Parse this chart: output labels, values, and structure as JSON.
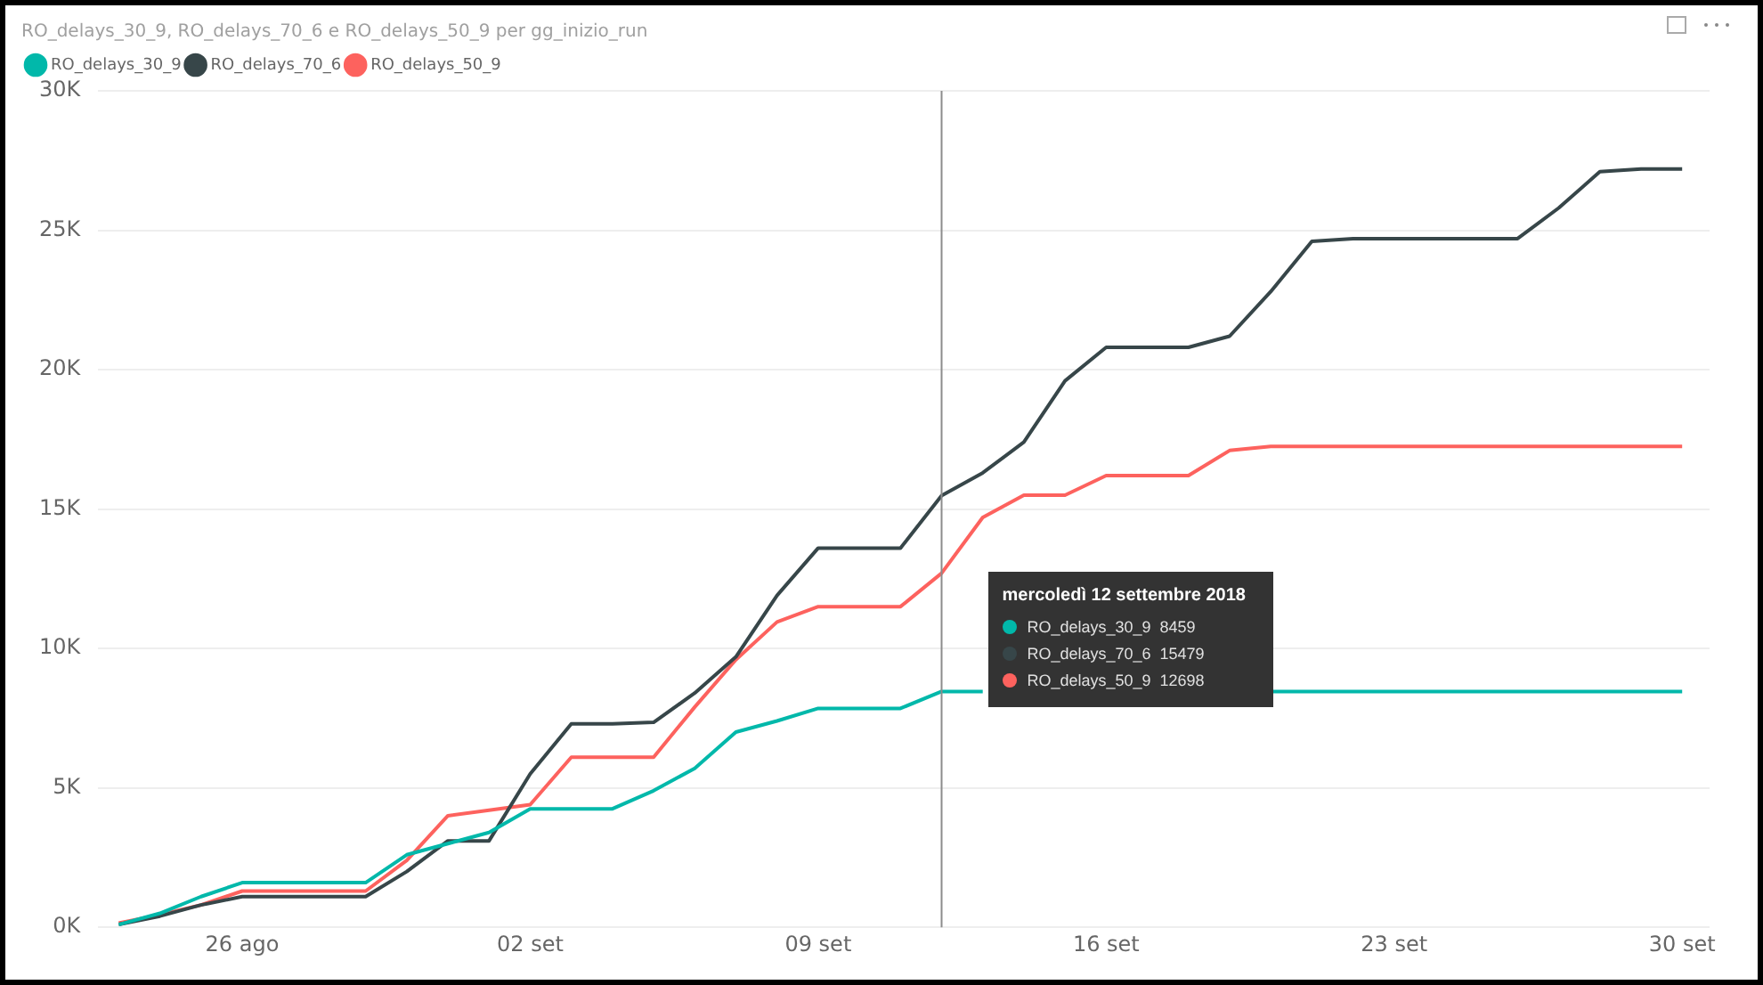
{
  "chart_data": {
    "type": "line",
    "title": "RO_delays_30_9, RO_delays_70_6 e RO_delays_50_9 per gg_inizio_run",
    "x": [
      "2018-08-23",
      "2018-08-24",
      "2018-08-25",
      "2018-08-26",
      "2018-08-27",
      "2018-08-28",
      "2018-08-29",
      "2018-08-30",
      "2018-08-31",
      "2018-09-01",
      "2018-09-02",
      "2018-09-03",
      "2018-09-04",
      "2018-09-05",
      "2018-09-06",
      "2018-09-07",
      "2018-09-08",
      "2018-09-09",
      "2018-09-10",
      "2018-09-11",
      "2018-09-12",
      "2018-09-13",
      "2018-09-14",
      "2018-09-15",
      "2018-09-16",
      "2018-09-17",
      "2018-09-18",
      "2018-09-19",
      "2018-09-20",
      "2018-09-21",
      "2018-09-22",
      "2018-09-23",
      "2018-09-24",
      "2018-09-25",
      "2018-09-26",
      "2018-09-27",
      "2018-09-28",
      "2018-09-29",
      "2018-09-30"
    ],
    "series": [
      {
        "name": "RO_delays_30_9",
        "color": "#01b8aa",
        "values": [
          100,
          500,
          1100,
          1600,
          1600,
          1600,
          1600,
          2600,
          3000,
          3400,
          4250,
          4250,
          4250,
          4900,
          5700,
          7000,
          7400,
          7850,
          7850,
          7850,
          8459,
          8459,
          null,
          null,
          null,
          null,
          null,
          null,
          8459,
          8459,
          8459,
          8459,
          8459,
          8459,
          8459,
          8459,
          8459,
          8459,
          8459
        ]
      },
      {
        "name": "RO_delays_70_6",
        "color": "#374649",
        "values": [
          100,
          400,
          800,
          1100,
          1100,
          1100,
          1100,
          2000,
          3100,
          3100,
          5500,
          7300,
          7300,
          7350,
          8400,
          9700,
          11900,
          13600,
          13600,
          13600,
          15479,
          16300,
          17400,
          19600,
          20800,
          20800,
          20800,
          21200,
          22800,
          24600,
          24700,
          24700,
          24700,
          24700,
          24700,
          25800,
          27100,
          27200,
          27200
        ]
      },
      {
        "name": "RO_delays_50_9",
        "color": "#fd625e",
        "values": [
          150,
          450,
          800,
          1300,
          1300,
          1300,
          1300,
          2400,
          4000,
          4200,
          4400,
          6100,
          6100,
          6100,
          7900,
          9600,
          10950,
          11500,
          11500,
          11500,
          12698,
          14700,
          15500,
          15500,
          16200,
          16200,
          16200,
          17100,
          17250,
          17250,
          17250,
          17250,
          17250,
          17250,
          17250,
          17250,
          17250,
          17250,
          17250
        ]
      }
    ],
    "xlim": [
      "2018-08-22T12:00",
      "2018-09-30T16:00"
    ],
    "xticks": [
      {
        "value": "2018-08-26",
        "label": "26 ago"
      },
      {
        "value": "2018-09-02",
        "label": "02 set"
      },
      {
        "value": "2018-09-09",
        "label": "09 set"
      },
      {
        "value": "2018-09-16",
        "label": "16 set"
      },
      {
        "value": "2018-09-23",
        "label": "23 set"
      },
      {
        "value": "2018-09-30",
        "label": "30 set"
      }
    ],
    "ylim": [
      0,
      30000
    ],
    "yticks": [
      {
        "value": 0,
        "label": "0K"
      },
      {
        "value": 5000,
        "label": "5K"
      },
      {
        "value": 10000,
        "label": "10K"
      },
      {
        "value": 15000,
        "label": "15K"
      },
      {
        "value": 20000,
        "label": "20K"
      },
      {
        "value": 25000,
        "label": "25K"
      },
      {
        "value": 30000,
        "label": "30K"
      }
    ],
    "grid": "y",
    "legend": "top left",
    "ref_lines": [
      {
        "axis": "x",
        "value": "2018-09-12",
        "color": "#8c8c8c"
      }
    ],
    "annotations": [
      "mercoledì 12 settembre 2018",
      "RO_delays_30_9  8459",
      "RO_delays_70_6  15479",
      "RO_delays_50_9  12698"
    ]
  }
}
